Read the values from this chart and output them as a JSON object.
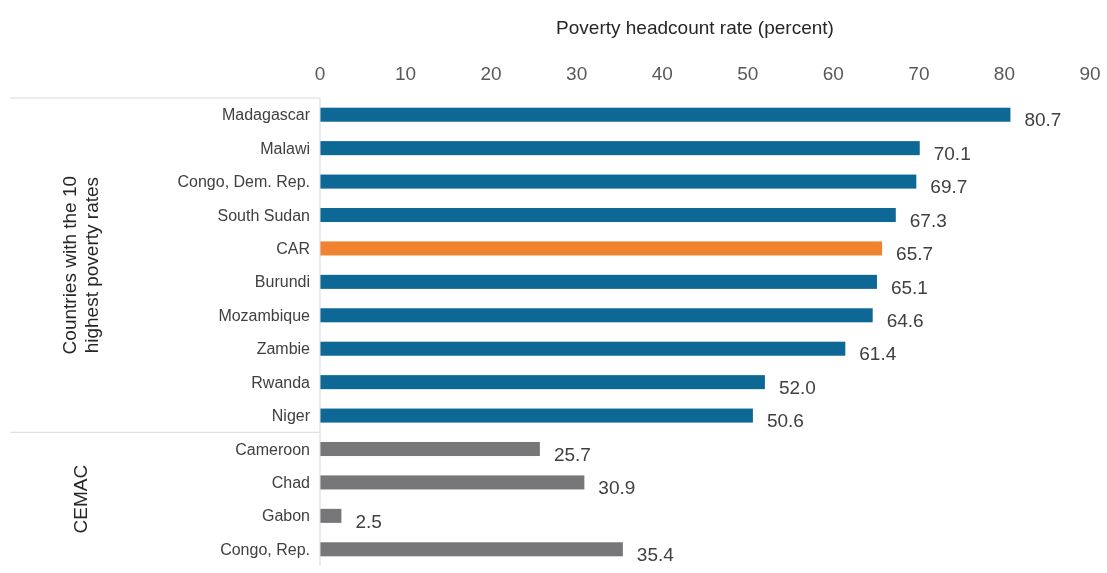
{
  "chart_data": {
    "type": "bar",
    "orientation": "horizontal",
    "xlabel": "Poverty headcount rate (percent)",
    "categories": [
      "Madagascar",
      "Malawi",
      "Congo, Dem. Rep.",
      "South Sudan",
      "CAR",
      "Burundi",
      "Mozambique",
      "Zambie",
      "Rwanda",
      "Niger",
      "Cameroon",
      "Chad",
      "Gabon",
      "Congo, Rep."
    ],
    "values": [
      80.7,
      70.1,
      69.7,
      67.3,
      65.7,
      65.1,
      64.6,
      61.4,
      52.0,
      50.6,
      25.7,
      30.9,
      2.5,
      35.4
    ],
    "value_labels": [
      "80.7",
      "70.1",
      "69.7",
      "67.3",
      "65.7",
      "65.1",
      "64.6",
      "61.4",
      "52.0",
      "50.6",
      "25.7",
      "30.9",
      "2.5",
      "35.4"
    ],
    "colors": [
      "#0e6896",
      "#0e6896",
      "#0e6896",
      "#0e6896",
      "#f08330",
      "#0e6896",
      "#0e6896",
      "#0e6896",
      "#0e6896",
      "#0e6896",
      "#77777a",
      "#77777a",
      "#77777a",
      "#77777a"
    ],
    "xlim": [
      0,
      90
    ],
    "xticks": [
      0,
      10,
      20,
      30,
      40,
      50,
      60,
      70,
      80,
      90
    ],
    "grid": false,
    "annotations": [
      "Countries with the 10 highest poverty rates",
      "CEMAC"
    ]
  }
}
